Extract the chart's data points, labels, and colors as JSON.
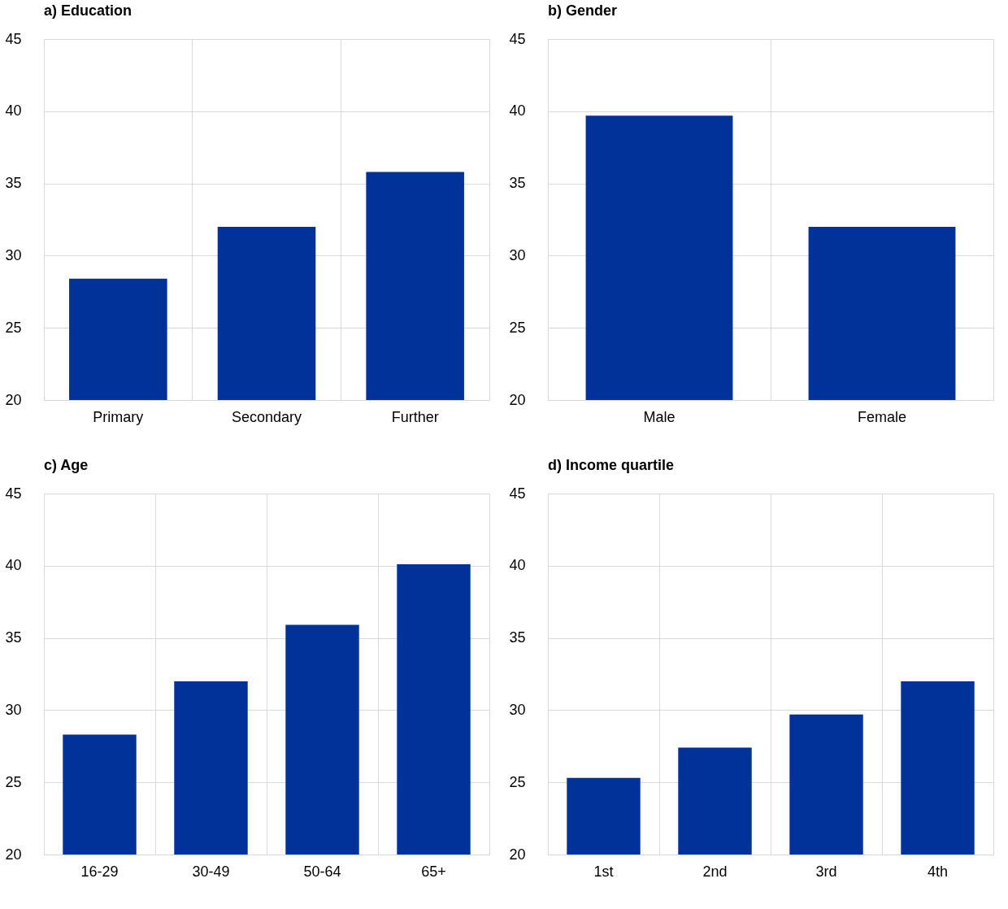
{
  "chart_data": [
    {
      "type": "bar",
      "title": "a) Education",
      "categories": [
        "Primary",
        "Secondary",
        "Further"
      ],
      "values": [
        28.4,
        32.0,
        35.8
      ],
      "color": "#003299",
      "ylim": [
        20,
        45
      ],
      "yticks": [
        20,
        25,
        30,
        35,
        40,
        45
      ],
      "grid": true
    },
    {
      "type": "bar",
      "title": "b) Gender",
      "categories": [
        "Male",
        "Female"
      ],
      "values": [
        39.7,
        32.0
      ],
      "color": "#003299",
      "ylim": [
        20,
        45
      ],
      "yticks": [
        20,
        25,
        30,
        35,
        40,
        45
      ],
      "grid": true
    },
    {
      "type": "bar",
      "title": "c) Age",
      "categories": [
        "16-29",
        "30-49",
        "50-64",
        "65+"
      ],
      "values": [
        28.3,
        32.0,
        35.9,
        40.1
      ],
      "color": "#003299",
      "ylim": [
        20,
        45
      ],
      "yticks": [
        20,
        25,
        30,
        35,
        40,
        45
      ],
      "grid": true
    },
    {
      "type": "bar",
      "title": "d) Income quartile",
      "categories": [
        "1st",
        "2nd",
        "3rd",
        "4th"
      ],
      "values": [
        25.3,
        27.4,
        29.7,
        32.0
      ],
      "color": "#003299",
      "ylim": [
        20,
        45
      ],
      "yticks": [
        20,
        25,
        30,
        35,
        40,
        45
      ],
      "grid": true
    }
  ]
}
